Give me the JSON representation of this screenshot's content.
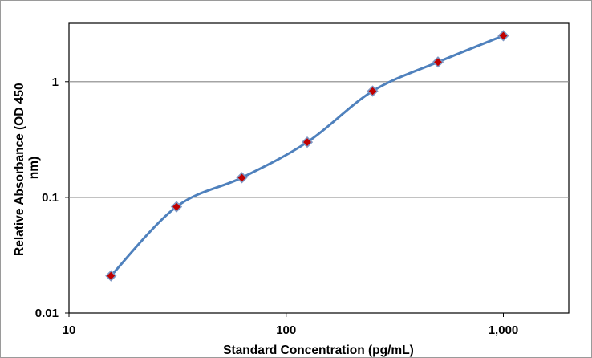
{
  "chart_data": {
    "type": "line",
    "title": "",
    "xlabel": "Standard Concentration (pg/mL)",
    "ylabel_lines": [
      "Relative Absorbance (OD 450",
      "nm)"
    ],
    "x_scale": "log",
    "y_scale": "log",
    "xlim": [
      10,
      2000
    ],
    "ylim": [
      0.01,
      3.2
    ],
    "x_ticks": [
      {
        "value": 10,
        "label": "10"
      },
      {
        "value": 100,
        "label": "100"
      },
      {
        "value": 1000,
        "label": "1,000"
      }
    ],
    "y_ticks": [
      {
        "value": 0.01,
        "label": "0.01"
      },
      {
        "value": 0.1,
        "label": "0.1"
      },
      {
        "value": 1,
        "label": "1"
      }
    ],
    "grid": "horizontal major lines",
    "legend": "none",
    "series": [
      {
        "x": [
          15.6,
          31.25,
          62.5,
          125,
          250,
          500,
          1000
        ],
        "y": [
          0.021,
          0.083,
          0.148,
          0.3,
          0.83,
          1.48,
          2.5
        ]
      }
    ],
    "colors": {
      "line": "#4f81bd",
      "marker_fill": "#c00000",
      "marker_border": "#7f98c4",
      "gridline": "#868686",
      "plot_border": "#000000"
    }
  }
}
